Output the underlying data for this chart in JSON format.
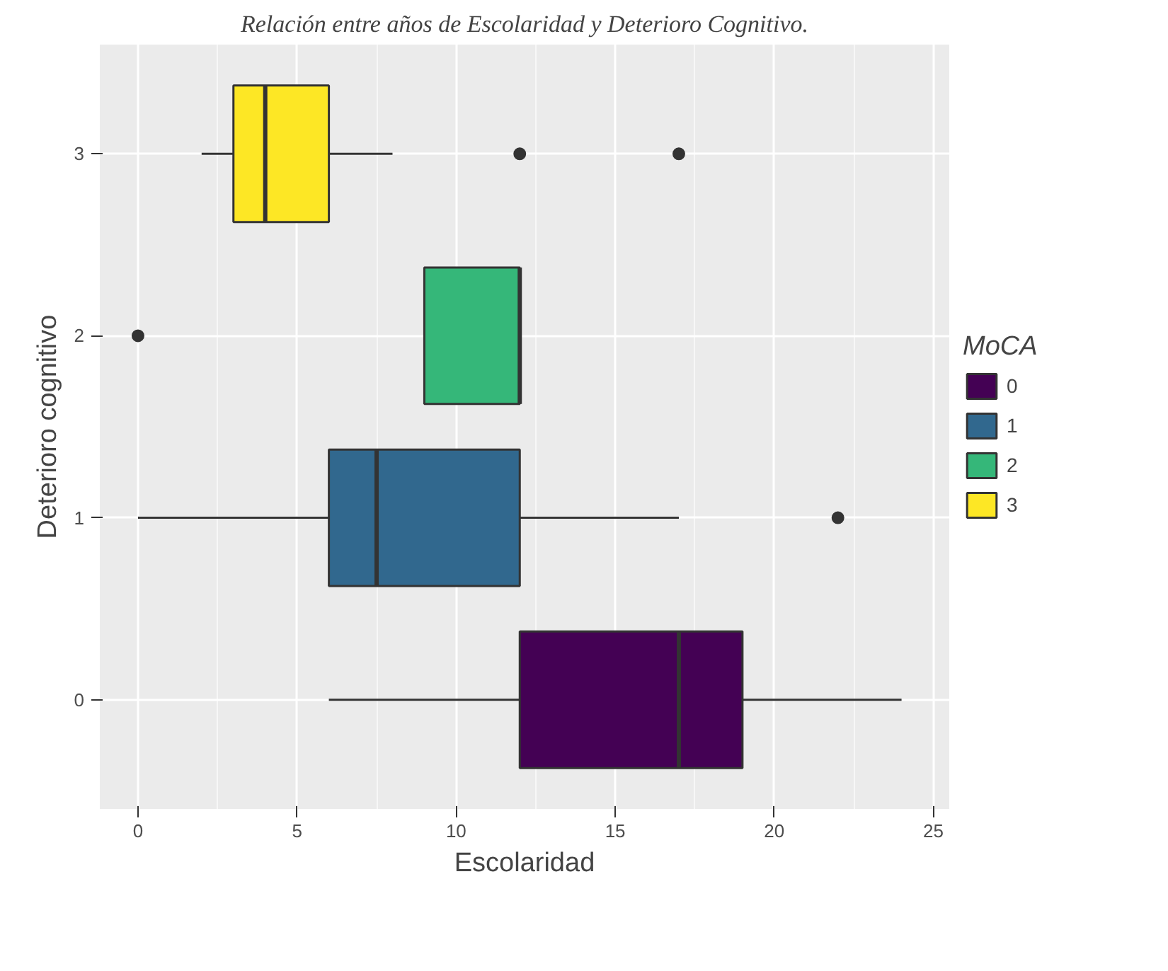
{
  "chart_data": {
    "type": "box",
    "orientation": "horizontal",
    "title": "Relación entre años de Escolaridad y Deterioro Cognitivo.",
    "xlabel": "Escolaridad",
    "ylabel": "Deterioro cognitivo",
    "legend_title": "MoCA",
    "categories": [
      "3",
      "2",
      "1",
      "0"
    ],
    "series": [
      {
        "name": "0",
        "color": "#440154",
        "boxes": [
          null,
          null,
          null,
          {
            "low": 6,
            "q1": 12,
            "median": 17,
            "q3": 19,
            "high": 24
          }
        ]
      },
      {
        "name": "1",
        "color": "#31688e",
        "boxes": [
          null,
          null,
          {
            "low": 0,
            "q1": 6,
            "median": 7.5,
            "q3": 12,
            "high": 17,
            "outliers": [
              22
            ]
          },
          null
        ]
      },
      {
        "name": "2",
        "color": "#35b779",
        "boxes": [
          null,
          {
            "low": 9,
            "q1": 9,
            "median": 12,
            "q3": 12,
            "high": 12,
            "outliers": [
              0
            ]
          },
          null,
          null
        ]
      },
      {
        "name": "3",
        "color": "#fde725",
        "boxes": [
          {
            "low": 2,
            "q1": 3,
            "median": 4,
            "q3": 6,
            "high": 8,
            "outliers": [
              12,
              17
            ]
          },
          null,
          null,
          null
        ]
      }
    ],
    "xlim": [
      -1.2,
      25.5
    ],
    "xticks": [
      0,
      5,
      10,
      15,
      20,
      25
    ],
    "grid": true,
    "legend": "right"
  }
}
